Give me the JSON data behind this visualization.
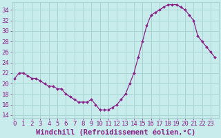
{
  "hours": [
    0,
    0.5,
    1,
    1.5,
    2,
    2.5,
    3,
    3.5,
    4,
    4.5,
    5,
    5.5,
    6,
    6.5,
    7,
    7.5,
    8,
    8.5,
    9,
    9.5,
    10,
    10.5,
    11,
    11.5,
    12,
    12.5,
    13,
    13.5,
    14,
    14.5,
    15,
    15.5,
    16,
    16.5,
    17,
    17.5,
    18,
    18.5,
    19,
    19.5,
    20,
    20.5,
    21,
    21.5,
    22,
    22.5,
    23,
    23.5
  ],
  "windchill": [
    21,
    22,
    22,
    21.5,
    21,
    21,
    20.5,
    20,
    19.5,
    19.5,
    19,
    19,
    18,
    17.5,
    17,
    16.5,
    16.5,
    16.5,
    17,
    16,
    15,
    15,
    15,
    15.5,
    16,
    17,
    18,
    20,
    22,
    25,
    28,
    31,
    33,
    33.5,
    34,
    34.5,
    35,
    35,
    35,
    34.5,
    34,
    33,
    32,
    29,
    28,
    27,
    26,
    25
  ],
  "line_color": "#882288",
  "marker": "D",
  "bg_color": "#c8ecec",
  "grid_major_color": "#aad4d4",
  "grid_minor_color": "#aad4d4",
  "xlabel": "Windchill (Refroidissement éolien,°C)",
  "ylim": [
    13.5,
    35.5
  ],
  "yticks": [
    14,
    16,
    18,
    20,
    22,
    24,
    26,
    28,
    30,
    32,
    34
  ],
  "xticks": [
    0,
    1,
    2,
    3,
    4,
    5,
    6,
    7,
    8,
    9,
    10,
    11,
    12,
    13,
    14,
    15,
    16,
    17,
    18,
    19,
    20,
    21,
    22,
    23
  ],
  "xlim": [
    -0.3,
    24.0
  ],
  "tick_color": "#882288",
  "xlabel_fontsize": 7.5,
  "tick_fontsize": 6.5
}
